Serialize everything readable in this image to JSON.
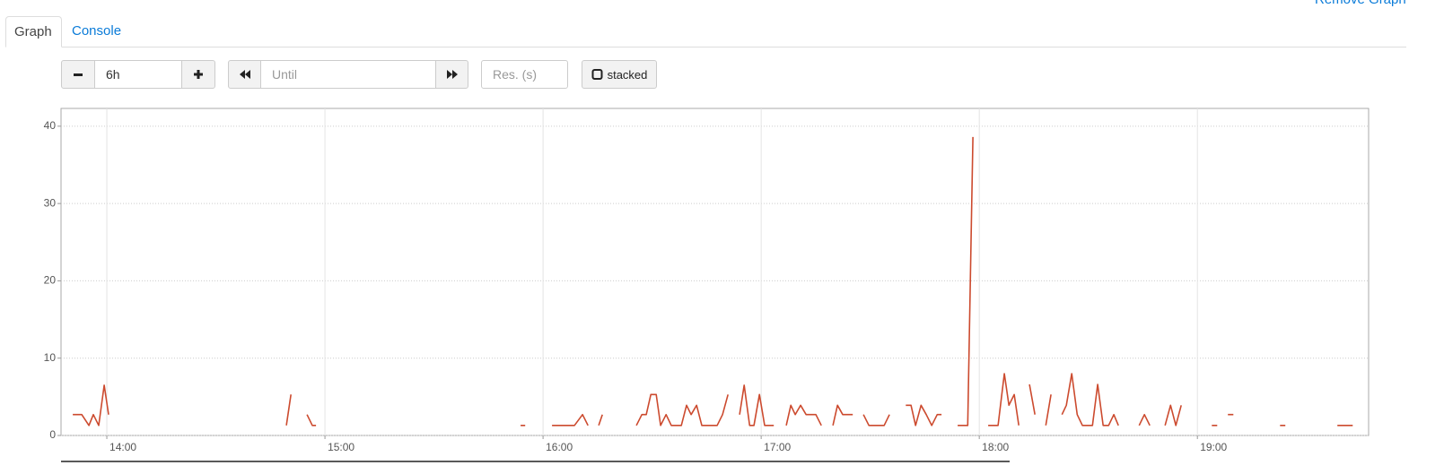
{
  "header": {
    "tabs": [
      "Graph",
      "Console"
    ],
    "remove_link": "Remove Graph"
  },
  "controls": {
    "range": "6h",
    "until_placeholder": "Until",
    "resolution_placeholder": "Res. (s)",
    "stacked": "stacked"
  },
  "chart_data": {
    "type": "line",
    "xlim": [
      13.79,
      19.785
    ],
    "ylim": [
      0,
      42.3
    ],
    "xticks": [
      {
        "value": 14,
        "label": "14:00"
      },
      {
        "value": 15,
        "label": "15:00"
      },
      {
        "value": 16,
        "label": "16:00"
      },
      {
        "value": 17,
        "label": "17:00"
      },
      {
        "value": 18,
        "label": "18:00"
      },
      {
        "value": 19,
        "label": "19:00"
      }
    ],
    "yticks": [
      0,
      10,
      20,
      30,
      40
    ],
    "grid": true,
    "x": [
      13.844,
      13.885,
      13.918,
      13.938,
      13.963,
      13.988,
      14.008,
      14.5,
      14.823,
      14.844,
      14.85,
      14.918,
      14.942,
      14.959,
      15.5,
      15.897,
      15.918,
      16.0,
      16.041,
      16.103,
      16.144,
      16.181,
      16.206,
      16.21,
      16.255,
      16.272,
      16.3,
      16.428,
      16.453,
      16.473,
      16.494,
      16.519,
      16.539,
      16.564,
      16.588,
      16.634,
      16.658,
      16.679,
      16.704,
      16.728,
      16.798,
      16.823,
      16.848,
      16.85,
      16.901,
      16.922,
      16.947,
      16.967,
      16.992,
      17.016,
      17.058,
      17.07,
      17.115,
      17.136,
      17.156,
      17.181,
      17.206,
      17.251,
      17.276,
      17.28,
      17.329,
      17.35,
      17.374,
      17.42,
      17.43,
      17.469,
      17.494,
      17.564,
      17.588,
      17.6,
      17.663,
      17.687,
      17.708,
      17.733,
      17.757,
      17.782,
      17.807,
      17.827,
      17.84,
      17.901,
      17.947,
      17.971,
      17.98,
      18.041,
      18.086,
      18.115,
      18.136,
      18.16,
      18.181,
      18.19,
      18.23,
      18.255,
      18.26,
      18.305,
      18.329,
      18.34,
      18.379,
      18.399,
      18.424,
      18.449,
      18.473,
      18.519,
      18.543,
      18.568,
      18.593,
      18.617,
      18.638,
      18.65,
      18.733,
      18.757,
      18.782,
      18.79,
      18.852,
      18.877,
      18.901,
      18.926,
      19.0,
      19.066,
      19.091,
      19.1,
      19.14,
      19.165,
      19.2,
      19.379,
      19.403,
      19.5,
      19.642,
      19.712
    ],
    "series": [
      {
        "color": "#cc4a2e",
        "values": [
          2.7,
          2.7,
          1.3,
          2.7,
          1.3,
          6.5,
          2.7,
          null,
          1.3,
          5.3,
          null,
          2.7,
          1.3,
          1.3,
          null,
          1.3,
          1.3,
          null,
          1.3,
          1.3,
          1.3,
          2.7,
          1.3,
          null,
          1.3,
          2.7,
          null,
          1.3,
          2.7,
          2.7,
          5.3,
          5.3,
          1.3,
          2.7,
          1.3,
          1.3,
          3.9,
          2.7,
          3.9,
          1.3,
          1.3,
          2.7,
          5.3,
          null,
          2.7,
          6.5,
          1.3,
          1.3,
          5.3,
          1.3,
          1.3,
          null,
          1.3,
          3.9,
          2.7,
          3.9,
          2.7,
          2.7,
          1.3,
          null,
          1.3,
          3.9,
          2.7,
          2.7,
          null,
          2.7,
          1.3,
          1.3,
          2.7,
          null,
          3.9,
          3.9,
          1.3,
          3.9,
          2.7,
          1.3,
          2.7,
          2.7,
          null,
          1.3,
          1.3,
          38.6,
          null,
          1.3,
          1.3,
          8.0,
          3.9,
          5.3,
          1.3,
          null,
          6.6,
          2.7,
          null,
          1.3,
          5.3,
          null,
          2.7,
          3.9,
          8.0,
          2.7,
          1.3,
          1.3,
          6.6,
          1.3,
          1.3,
          2.7,
          1.3,
          null,
          1.3,
          2.7,
          1.3,
          null,
          1.3,
          3.9,
          1.3,
          3.9,
          null,
          1.3,
          1.3,
          null,
          2.7,
          2.7,
          null,
          1.3,
          1.3,
          null,
          1.3,
          1.3
        ]
      }
    ]
  }
}
